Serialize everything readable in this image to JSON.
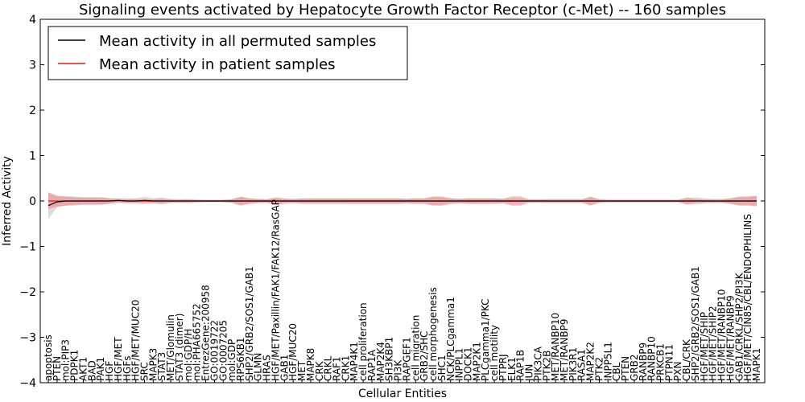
{
  "chart_data": {
    "type": "line",
    "title": "Signaling events activated by Hepatocyte Growth Factor Receptor (c-Met) -- 160 samples",
    "xlabel": "Cellular Entities",
    "ylabel": "Inferred Activity",
    "ylim": [
      -4,
      4
    ],
    "yticks": [
      "4",
      "3",
      "2",
      "1",
      "0",
      "−1",
      "−2",
      "−3",
      "−4"
    ],
    "legend_position": "top-left",
    "legend": [
      {
        "label": "Mean activity in all permuted samples",
        "color": "#000000"
      },
      {
        "label": "Mean activity in patient samples",
        "color": "#e31a1c"
      }
    ],
    "categories": [
      "apoptosis",
      "PTEN",
      "mol:PIP3",
      "PDPK1",
      "AKT1",
      "BAD",
      "PAK1",
      "HGF",
      "HGF/MET",
      "HGFs",
      "HGF/MET/MUC20",
      "SRC",
      "MAPK3",
      "STAT3",
      "MET/Glomulin",
      "STAT3 (dimer)",
      "mol:GDP/H",
      "mol:PHA665752",
      "EntrezGene:200958",
      "GO:0019722",
      "GO:0007205",
      "mol:GDP",
      "RPS6KB1",
      "SHP2/GRB2/SOS1/GAB1",
      "GLMN",
      "HRAS",
      "HGF/MET/Paxillin/FAK1/FAK12/RasGAP",
      "GAB1",
      "HGF/MUC20",
      "MET",
      "MAPK8",
      "CRK",
      "CRKL",
      "RAF1",
      "CRK1",
      "MAP4K1",
      "cell proliferation",
      "RAP1A",
      "MAP2K4",
      "SH3KBP1",
      "PI3K",
      "RAPGEF1",
      "cell migration",
      "GRB2/SHC",
      "cell morphogenesis",
      "SHC1",
      "NCK/PLCgamma1",
      "INPPL1",
      "DOCK1",
      "MAP2K1",
      "PLCgamma1/PKC",
      "cell motility",
      "PTPRJ",
      "ELK1",
      "RAP1B",
      "JUN",
      "PIK3CA",
      "PTK2B",
      "MET/RANBP10",
      "MET/RANBP9",
      "PIK3R1",
      "RASA1",
      "MAP2K2",
      "PTK2",
      "INPP5L1",
      "CBL",
      "PTEN",
      "GRB2",
      "RANBP9",
      "RANBP10",
      "PRKCB1",
      "PTPN11",
      "PXN",
      "CBL/CRK",
      "SHP2/GRB2/SOS1/GAB1",
      "HGF/MET/SHIP",
      "HGF/MET/SHIP2",
      "HGF/MET/RANBP10",
      "HGF/MET/RANBP9",
      "GAB1/CRKL/SHP2/PI3K",
      "HGF/MET/CIN85/CBL/ENDOPHILINS",
      "MAPK1"
    ],
    "series": [
      {
        "name": "Mean activity in all permuted samples",
        "values": [
          -0.1,
          -0.02,
          0.0,
          0.0,
          0.0,
          0.0,
          0.0,
          0.0,
          0.01,
          0.0,
          0.0,
          0.01,
          0.0,
          0.0,
          0.0,
          0.0,
          0.0,
          0.0,
          0.0,
          0.0,
          0.0,
          0.0,
          0.0,
          0.0,
          0.0,
          0.0,
          0.0,
          0.0,
          0.0,
          0.0,
          0.0,
          0.0,
          0.0,
          0.0,
          0.0,
          0.0,
          0.0,
          0.0,
          0.0,
          0.0,
          0.0,
          0.0,
          0.0,
          0.0,
          0.0,
          0.0,
          0.0,
          0.0,
          0.0,
          0.0,
          0.0,
          0.0,
          0.0,
          0.0,
          0.0,
          0.0,
          0.0,
          0.0,
          0.0,
          0.0,
          0.0,
          0.0,
          0.0,
          0.0,
          0.0,
          0.0,
          0.0,
          0.0,
          0.0,
          0.0,
          0.0,
          0.0,
          0.0,
          0.0,
          0.0,
          0.0,
          0.0,
          0.0,
          0.0,
          0.0,
          0.0,
          0.0
        ],
        "spread": [
          0.3,
          0.12,
          0.1,
          0.1,
          0.08,
          0.08,
          0.08,
          0.06,
          0.05,
          0.06,
          0.06,
          0.08,
          0.06,
          0.08,
          0.05,
          0.04,
          0.05,
          0.04,
          0.03,
          0.03,
          0.03,
          0.04,
          0.08,
          0.06,
          0.05,
          0.04,
          0.06,
          0.04,
          0.05,
          0.05,
          0.05,
          0.05,
          0.05,
          0.05,
          0.05,
          0.06,
          0.06,
          0.06,
          0.06,
          0.06,
          0.06,
          0.05,
          0.06,
          0.06,
          0.08,
          0.08,
          0.06,
          0.05,
          0.06,
          0.06,
          0.06,
          0.06,
          0.05,
          0.05,
          0.05,
          0.04,
          0.04,
          0.05,
          0.05,
          0.05,
          0.05,
          0.05,
          0.08,
          0.05,
          0.04,
          0.04,
          0.04,
          0.04,
          0.04,
          0.04,
          0.04,
          0.04,
          0.04,
          0.06,
          0.08,
          0.06,
          0.05,
          0.05,
          0.06,
          0.08,
          0.08,
          0.1
        ],
        "color": "#000000",
        "band_color": "#b0b0b8"
      },
      {
        "name": "Mean activity in patient samples",
        "values": [
          0.0,
          0.0,
          0.0,
          0.0,
          0.0,
          0.0,
          0.0,
          0.0,
          0.01,
          0.0,
          0.0,
          0.0,
          0.0,
          0.0,
          0.0,
          0.0,
          0.0,
          0.0,
          0.0,
          0.0,
          0.0,
          0.0,
          0.0,
          0.0,
          0.0,
          0.0,
          0.0,
          0.0,
          0.0,
          0.0,
          0.0,
          0.0,
          0.0,
          0.0,
          0.0,
          0.0,
          0.0,
          0.0,
          0.0,
          0.0,
          0.0,
          0.0,
          0.0,
          0.0,
          0.0,
          0.0,
          0.0,
          0.0,
          0.0,
          0.0,
          0.0,
          0.0,
          0.0,
          0.0,
          0.0,
          0.0,
          0.0,
          0.0,
          0.0,
          0.0,
          0.0,
          0.0,
          0.0,
          0.0,
          0.0,
          0.0,
          0.0,
          0.0,
          0.0,
          0.0,
          0.0,
          0.0,
          0.0,
          0.0,
          0.0,
          0.0,
          0.0,
          0.0,
          0.0,
          0.0,
          0.0,
          0.0
        ],
        "spread": [
          0.18,
          0.12,
          0.1,
          0.08,
          0.08,
          0.08,
          0.08,
          0.06,
          0.04,
          0.04,
          0.04,
          0.04,
          0.04,
          0.05,
          0.03,
          0.03,
          0.03,
          0.02,
          0.02,
          0.02,
          0.02,
          0.04,
          0.1,
          0.06,
          0.04,
          0.04,
          0.08,
          0.06,
          0.04,
          0.06,
          0.06,
          0.06,
          0.06,
          0.06,
          0.06,
          0.06,
          0.06,
          0.06,
          0.06,
          0.06,
          0.06,
          0.05,
          0.06,
          0.06,
          0.1,
          0.1,
          0.06,
          0.05,
          0.06,
          0.06,
          0.06,
          0.06,
          0.05,
          0.1,
          0.1,
          0.03,
          0.03,
          0.03,
          0.03,
          0.03,
          0.03,
          0.03,
          0.1,
          0.03,
          0.02,
          0.02,
          0.02,
          0.02,
          0.02,
          0.02,
          0.02,
          0.02,
          0.02,
          0.08,
          0.04,
          0.03,
          0.03,
          0.03,
          0.06,
          0.1,
          0.1,
          0.12
        ],
        "color": "#e31a1c",
        "band_color": "#f08080"
      }
    ]
  }
}
